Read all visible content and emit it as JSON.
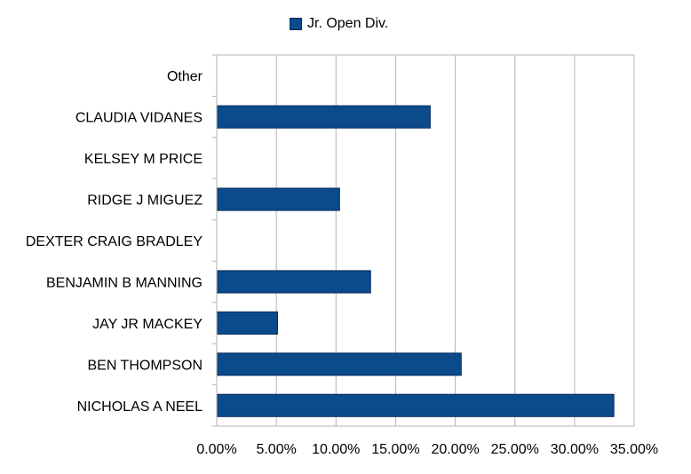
{
  "chart_data": {
    "type": "bar",
    "orientation": "horizontal",
    "categories": [
      "NICHOLAS A NEEL",
      "BEN THOMPSON",
      "JAY JR MACKEY",
      "BENJAMIN B MANNING",
      "DEXTER CRAIG BRADLEY",
      "RIDGE J MIGUEZ",
      "KELSEY M PRICE",
      "CLAUDIA VIDANES",
      "Other"
    ],
    "series": [
      {
        "name": "Jr. Open Div.",
        "color": "#0b4a8b",
        "values": [
          33.3,
          20.5,
          5.1,
          12.9,
          0,
          10.3,
          0,
          17.9,
          0
        ]
      }
    ],
    "xlim": [
      0,
      35
    ],
    "xticks": [
      "0.00%",
      "5.00%",
      "10.00%",
      "15.00%",
      "20.00%",
      "25.00%",
      "30.00%",
      "35.00%"
    ],
    "grid": "vertical",
    "legend_position": "top"
  }
}
